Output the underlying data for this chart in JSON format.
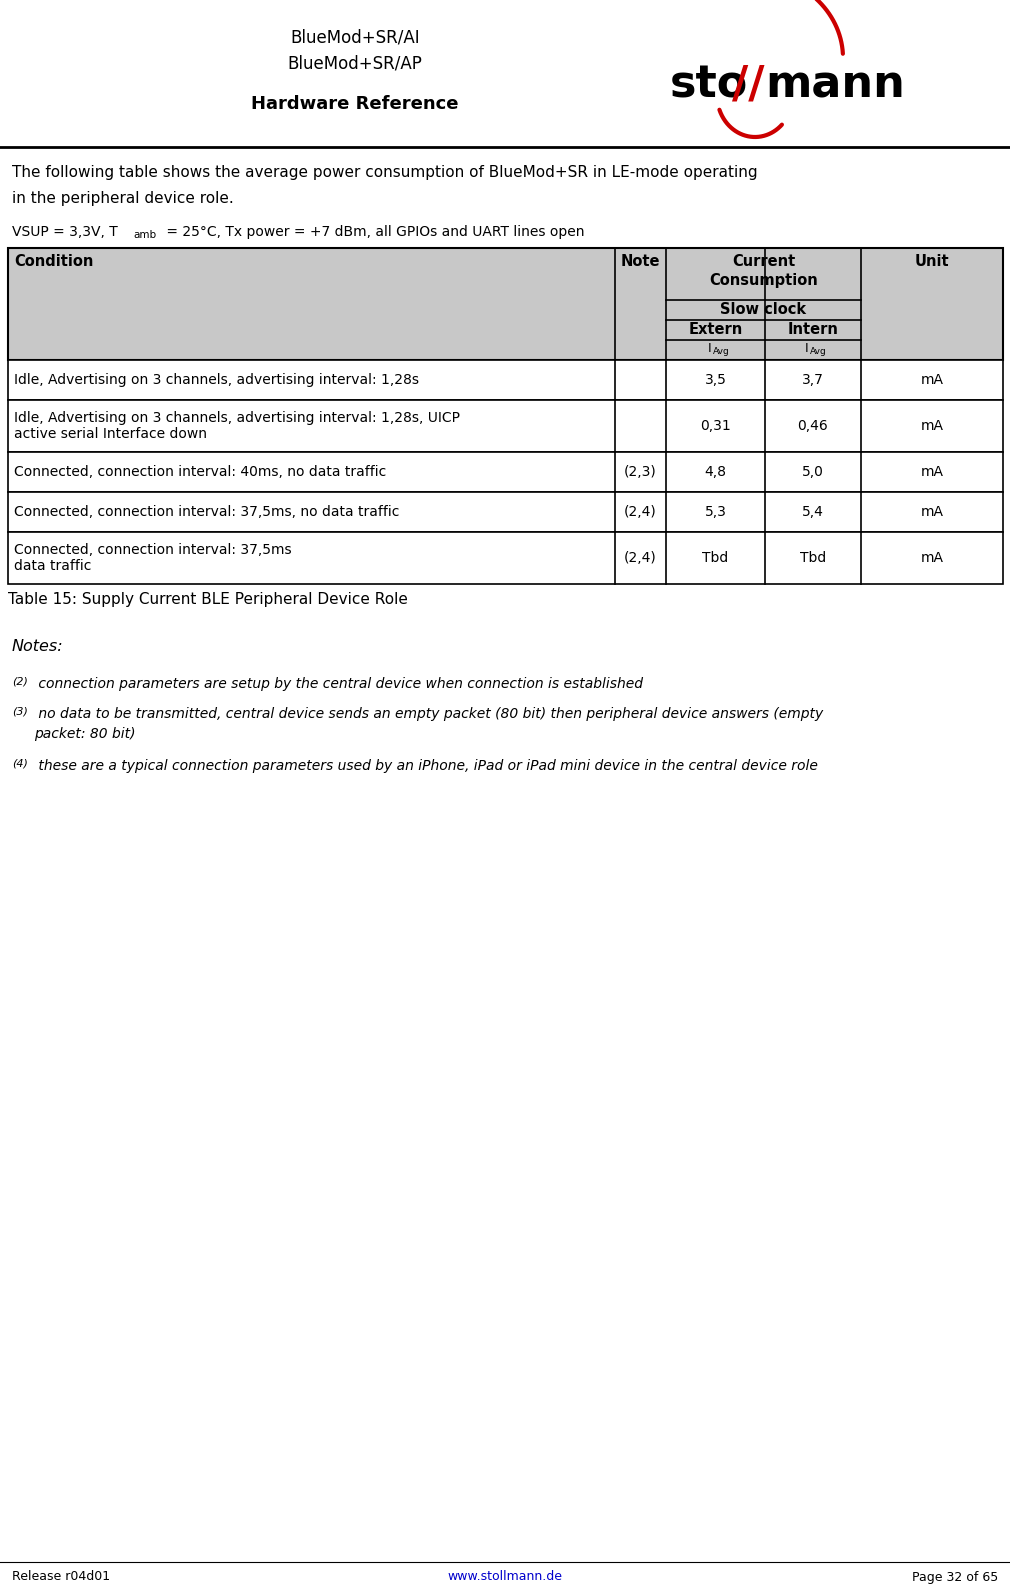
{
  "header_line1": "BlueMod+SR/AI",
  "header_line2": "BlueMod+SR/AP",
  "header_line3": "Hardware Reference",
  "footer_left": "Release r04d01",
  "footer_center": "www.stollmann.de",
  "footer_right": "Page 32 of 65",
  "intro_line1": "The following table shows the average power consumption of BlueMod+SR in LE-mode operating",
  "intro_line2": "in the peripheral device role.",
  "col_header_bg": "#c8c8c8",
  "table_caption": "Table 15: Supply Current BLE Peripheral Device Role",
  "notes_title": "Notes:",
  "note2_super": "(2)",
  "note2_text": " connection parameters are setup by the central device when connection is established",
  "note3_super": "(3)",
  "note3_line1": " no data to be transmitted, central device sends an empty packet (80 bit) then peripheral device answers (empty",
  "note3_line2": "packet: 80 bit)",
  "note4_super": "(4)",
  "note4_text": " these are a typical connection parameters used by an iPhone, iPad or iPad mini device in the central device role",
  "rows": [
    {
      "condition": "Idle, Advertising on 3 channels, advertising interval: 1,28s",
      "note": "",
      "extern": "3,5",
      "intern": "3,7",
      "unit": "mA"
    },
    {
      "condition": "Idle, Advertising on 3 channels, advertising interval: 1,28s, UICP\nactive serial Interface down",
      "note": "",
      "extern": "0,31",
      "intern": "0,46",
      "unit": "mA"
    },
    {
      "condition": "Connected, connection interval: 40ms, no data traffic",
      "note": "(2,3)",
      "extern": "4,8",
      "intern": "5,0",
      "unit": "mA"
    },
    {
      "condition": "Connected, connection interval: 37,5ms, no data traffic",
      "note": "(2,4)",
      "extern": "5,3",
      "intern": "5,4",
      "unit": "mA"
    },
    {
      "condition": "Connected, connection interval: 37,5ms\ndata traffic",
      "note": "(2,4)",
      "extern": "Tbd",
      "intern": "Tbd",
      "unit": "mA"
    }
  ]
}
